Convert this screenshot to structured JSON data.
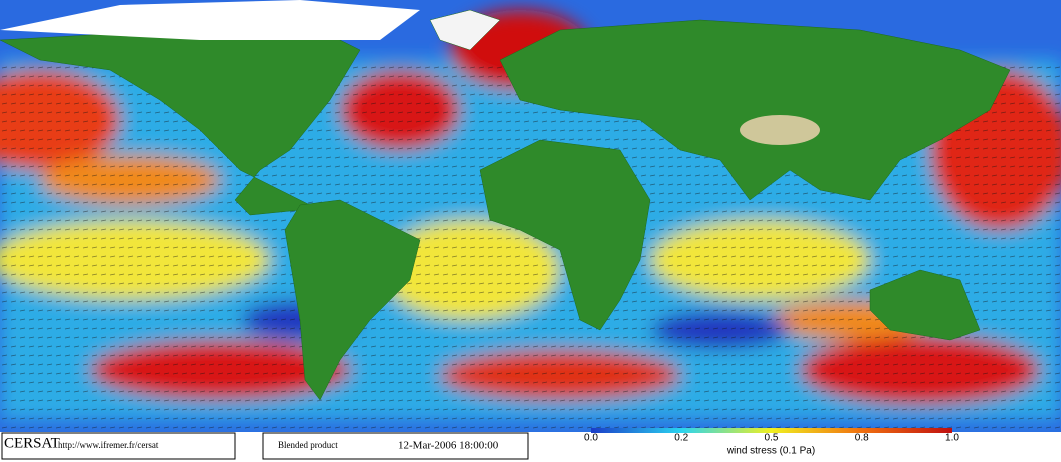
{
  "footer": {
    "logo": "CERSAT",
    "url": "http://www.ifremer.fr/cersat",
    "product": "Blended product",
    "date": "12-Mar-2006 18:00:00"
  },
  "colorbar": {
    "ticks": [
      "0.0",
      "0.2",
      "0.5",
      "0.8",
      "1.0"
    ],
    "label": "wind stress (0.1 Pa)"
  }
}
